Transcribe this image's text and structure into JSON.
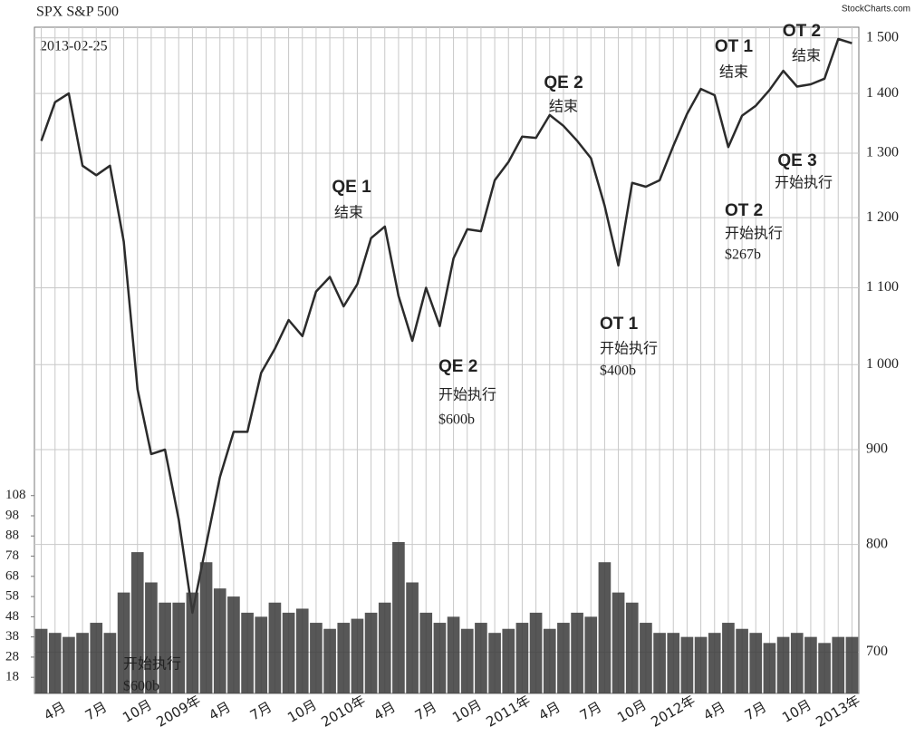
{
  "chart_data": {
    "type": "line",
    "title": "SPX S&P 500",
    "subtitle": "2013-02-25",
    "source": "StockCharts.com",
    "categories": [
      null,
      "4月",
      null,
      null,
      "7月",
      null,
      null,
      "10月",
      null,
      null,
      "2009年",
      null,
      null,
      "4月",
      null,
      null,
      "7月",
      null,
      null,
      "10月",
      null,
      null,
      "2010年",
      null,
      null,
      "4月",
      null,
      null,
      "7月",
      null,
      null,
      "10月",
      null,
      null,
      "2011年",
      null,
      null,
      "4月",
      null,
      null,
      "7月",
      null,
      null,
      "10月",
      null,
      null,
      "2012年",
      null,
      null,
      "4月",
      null,
      null,
      "7月",
      null,
      null,
      "10月",
      null,
      null,
      "2013年",
      null
    ],
    "series": [
      {
        "name": "SPX",
        "color": "#2b2b2b",
        "values": [
          1320,
          1385,
          1400,
          1280,
          1265,
          1280,
          1165,
          970,
          895,
          900,
          825,
          735,
          800,
          870,
          920,
          920,
          990,
          1020,
          1057,
          1036,
          1095,
          1115,
          1075,
          1105,
          1170,
          1187,
          1089,
          1030,
          1100,
          1049,
          1141,
          1183,
          1180,
          1257,
          1286,
          1327,
          1325,
          1363,
          1345,
          1320,
          1292,
          1218,
          1131,
          1253,
          1247,
          1257,
          1312,
          1365,
          1408,
          1397,
          1310,
          1362,
          1379,
          1406,
          1440,
          1412,
          1416,
          1426,
          1498,
          1490
        ]
      },
      {
        "name": "Volume",
        "color": "#3a3a3a",
        "axis": "y2",
        "values": [
          42,
          40,
          38,
          40,
          45,
          40,
          60,
          80,
          65,
          55,
          55,
          60,
          75,
          62,
          58,
          50,
          48,
          55,
          50,
          52,
          45,
          42,
          45,
          47,
          50,
          55,
          85,
          65,
          50,
          45,
          48,
          42,
          45,
          40,
          42,
          45,
          50,
          42,
          45,
          50,
          48,
          75,
          60,
          55,
          45,
          40,
          40,
          38,
          38,
          40,
          45,
          42,
          40,
          35,
          38,
          40,
          38,
          35,
          38,
          38
        ]
      }
    ],
    "log_scale": true,
    "ylim": [
      665,
      1520
    ],
    "yticks": [
      {
        "value": 1500,
        "label": "1 500"
      },
      {
        "value": 1400,
        "label": "1 400"
      },
      {
        "value": 1300,
        "label": "1 300"
      },
      {
        "value": 1200,
        "label": "1 200"
      },
      {
        "value": 1100,
        "label": "1 100"
      },
      {
        "value": 1000,
        "label": "1 000"
      },
      900,
      800,
      700
    ],
    "y2lim": [
      10,
      340
    ],
    "y2ticks": [
      18,
      28,
      38,
      48,
      58,
      68,
      78,
      88,
      98,
      108
    ],
    "grid": true,
    "annotations": [
      [
        "OT 1",
        "结束"
      ],
      [
        "OT 2",
        "结束"
      ],
      [
        "QE 2",
        "结束"
      ],
      [
        "QE 1",
        "结束"
      ],
      [
        "QE 3",
        "开始执行"
      ],
      [
        "OT 2",
        "开始执行",
        "$267b"
      ],
      [
        "OT 1",
        "开始执行",
        "$400b"
      ],
      [
        "QE 2",
        "开始执行",
        "$600b"
      ],
      [
        "开始执行",
        "$600b"
      ]
    ]
  }
}
